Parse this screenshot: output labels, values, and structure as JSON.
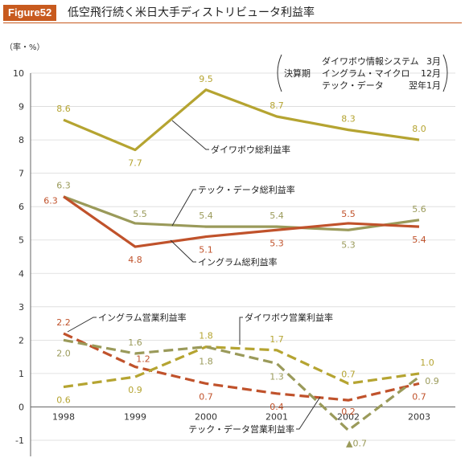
{
  "header": {
    "badge": "Figure52",
    "title": "低空飛行続く米日大手ディストリビュータ利益率"
  },
  "colors": {
    "accent": "#c85a1e",
    "daiwabo": "#b5a431",
    "ingram": "#c0522b",
    "techdata": "#9a9a5a"
  },
  "legend_box": {
    "label": "決算期",
    "rows": [
      {
        "company": "ダイワボウ情報システム",
        "period": "3月"
      },
      {
        "company": "イングラム・マイクロ",
        "period": "12月"
      },
      {
        "company": "テック・データ",
        "period": "翌年1月"
      }
    ]
  },
  "chart_data": {
    "type": "line",
    "ylabel": "（率・%）",
    "ylim": [
      -1,
      10
    ],
    "yticks": [
      "-1",
      "0",
      "1",
      "2",
      "3",
      "4",
      "5",
      "6",
      "7",
      "8",
      "9",
      "10"
    ],
    "categories": [
      "1998",
      "1999",
      "2000",
      "2001",
      "2002",
      "2003"
    ],
    "grid": true,
    "series": [
      {
        "name": "ダイワボウ総利益率",
        "values": [
          8.6,
          7.7,
          9.5,
          8.7,
          8.3,
          8.0
        ],
        "labels": [
          "8.6",
          "7.7",
          "9.5",
          "8.7",
          "8.3",
          "8.0"
        ],
        "style": "solid",
        "color": "#b5a431"
      },
      {
        "name": "テック・データ総利益率",
        "values": [
          6.3,
          5.5,
          5.4,
          5.4,
          5.3,
          5.6
        ],
        "labels": [
          "6.3",
          "5.5",
          "5.4",
          "5.4",
          "5.3",
          "5.6"
        ],
        "style": "solid",
        "color": "#9a9a5a"
      },
      {
        "name": "イングラム総利益率",
        "values": [
          6.3,
          4.8,
          5.1,
          5.3,
          5.5,
          5.4
        ],
        "labels": [
          "6.3",
          "4.8",
          "5.1",
          "5.3",
          "5.5",
          "5.4"
        ],
        "style": "solid",
        "color": "#c0522b"
      },
      {
        "name": "イングラム営業利益率",
        "values": [
          2.2,
          1.2,
          0.7,
          0.4,
          0.2,
          0.7
        ],
        "labels": [
          "2.2",
          "1.2",
          "0.7",
          "0.4",
          "0.2",
          "0.7"
        ],
        "style": "dashed",
        "color": "#c0522b"
      },
      {
        "name": "ダイワボウ営業利益率",
        "values": [
          0.6,
          0.9,
          1.8,
          1.7,
          0.7,
          1.0
        ],
        "labels": [
          "0.6",
          "0.9",
          "1.8",
          "1.7",
          "0.7",
          "1.0"
        ],
        "style": "dashed",
        "color": "#b5a431"
      },
      {
        "name": "テック・データ営業利益率",
        "values": [
          2.0,
          1.6,
          1.8,
          1.3,
          -0.7,
          0.9
        ],
        "labels": [
          "2.0",
          "1.6",
          "1.8",
          "1.3",
          "▲0.7",
          "0.9"
        ],
        "style": "dashed",
        "color": "#9a9a5a"
      }
    ]
  }
}
